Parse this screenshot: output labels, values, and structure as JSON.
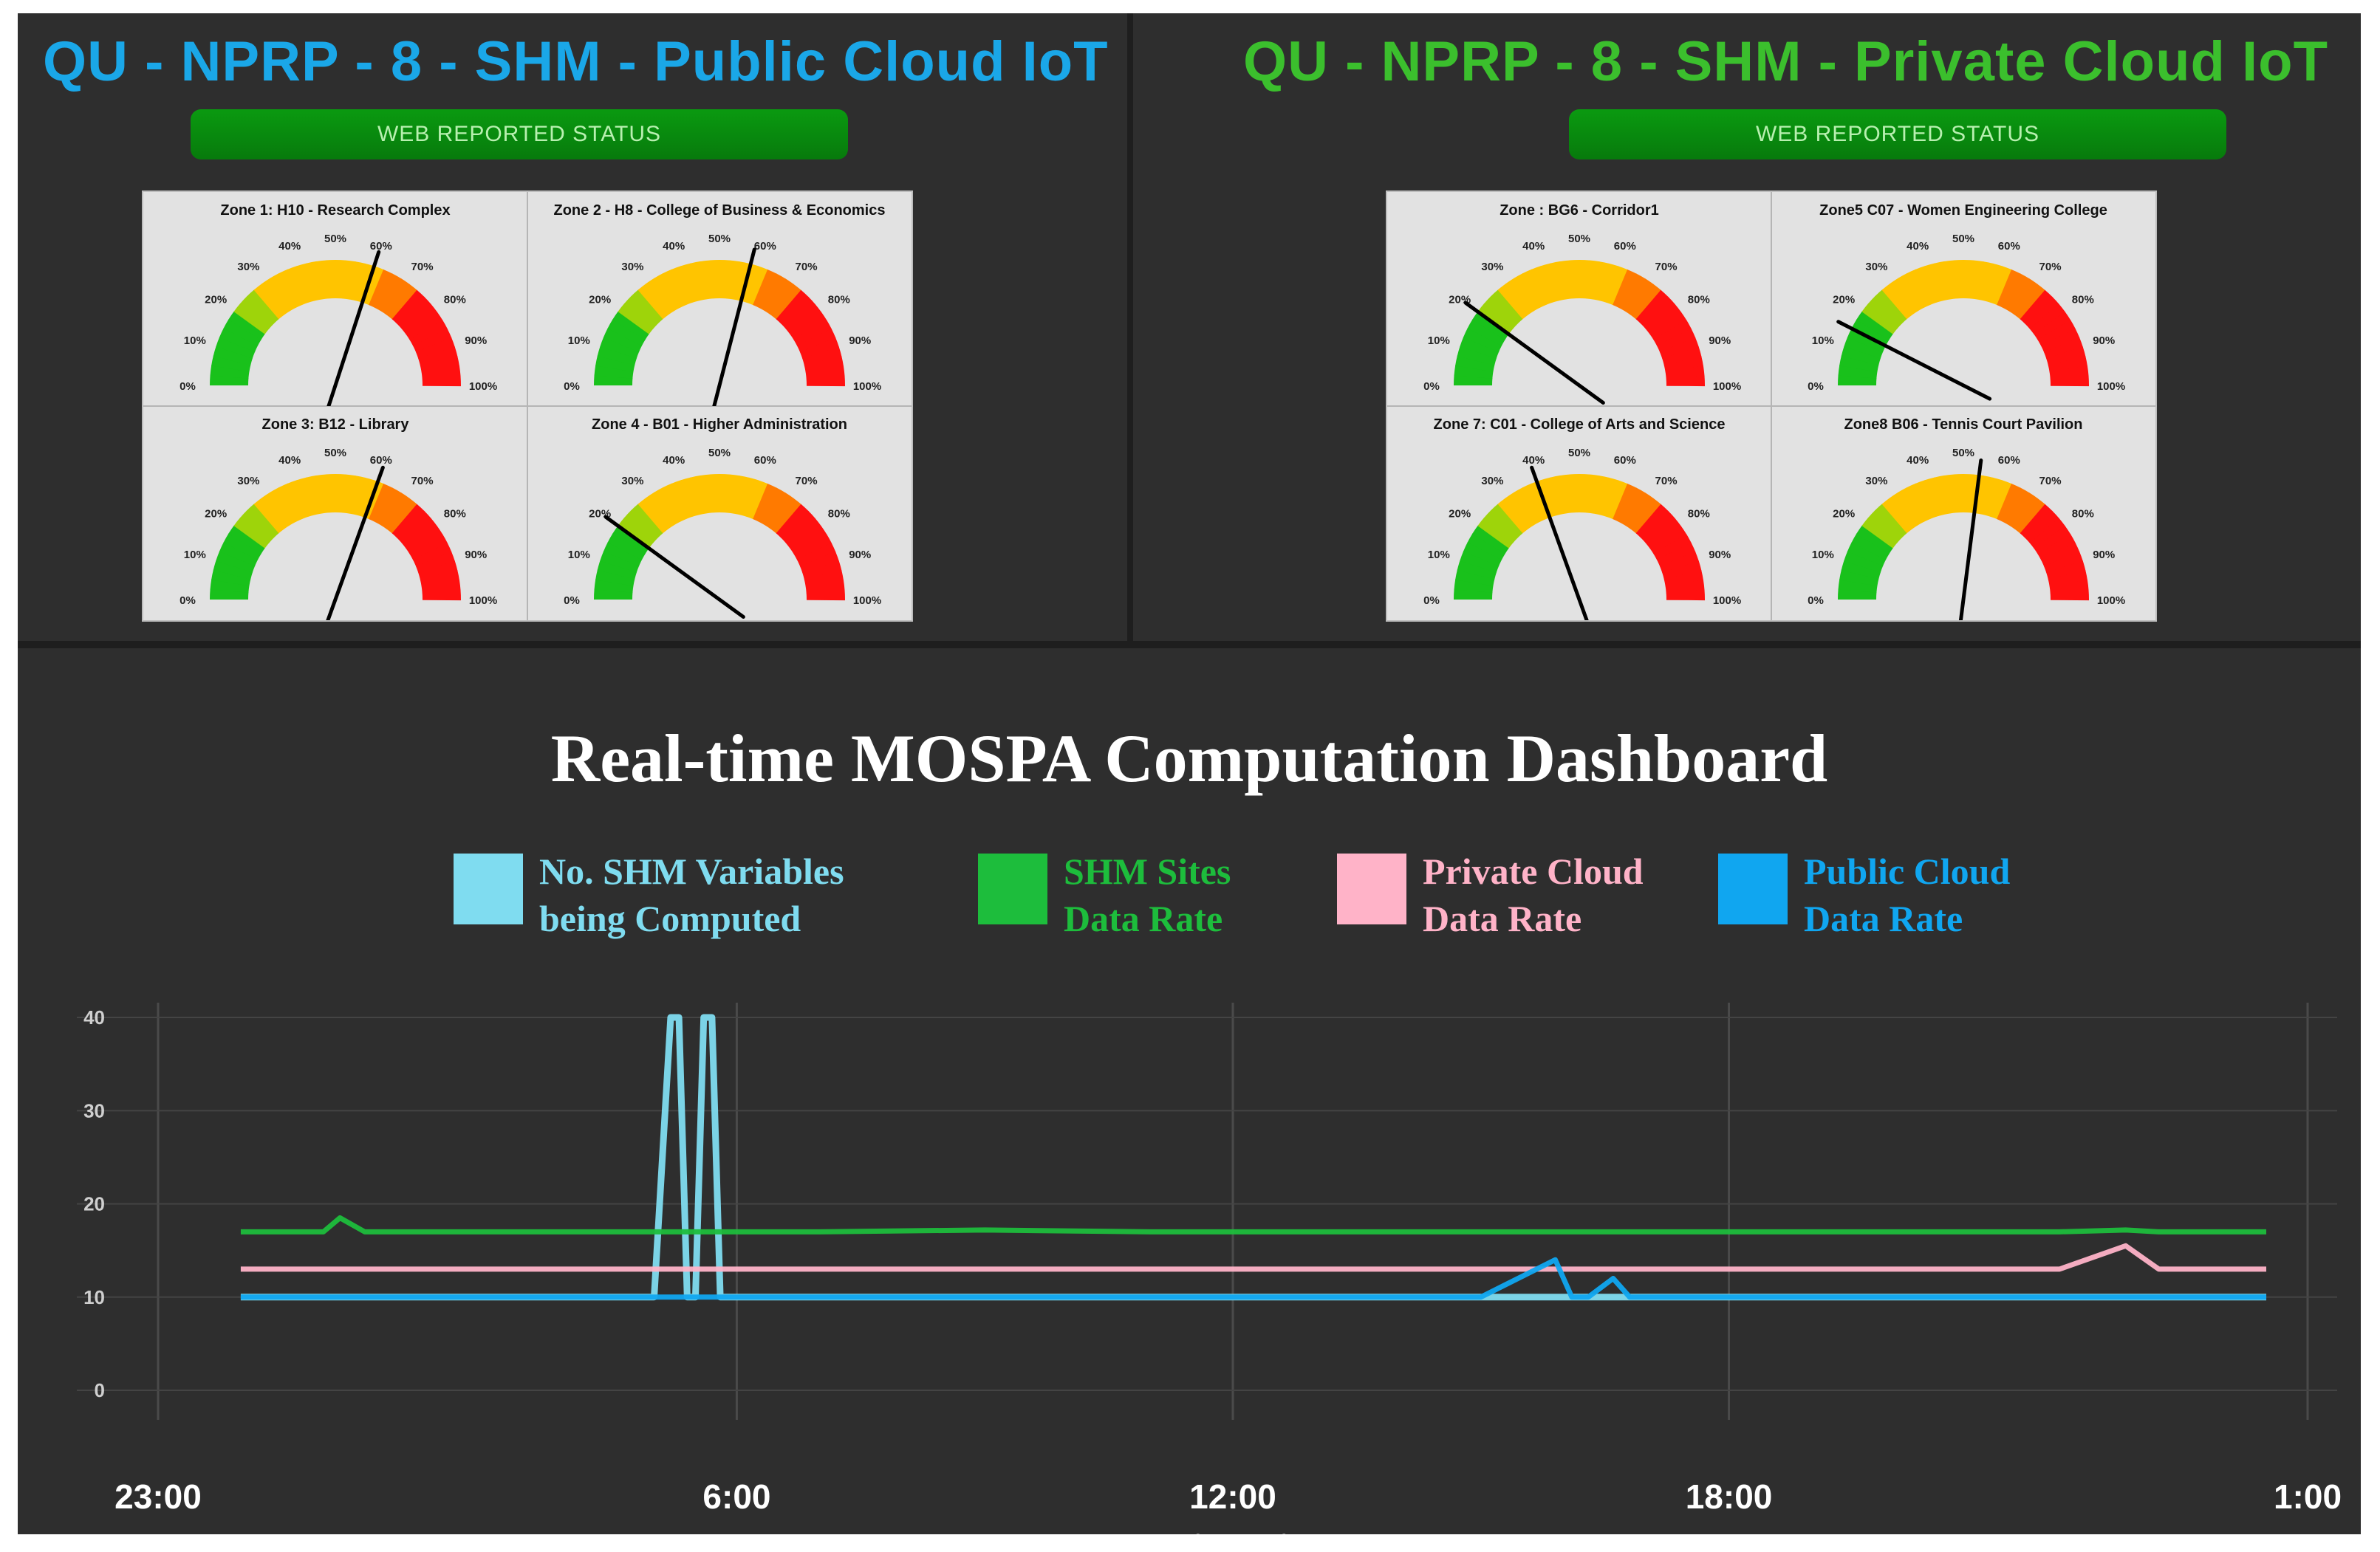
{
  "public_panel": {
    "title": "QU - NPRP - 8 - SHM - Public Cloud IoT",
    "status_button": "WEB REPORTED STATUS",
    "zones": [
      {
        "label": "Zone 1: H10 - Research Complex",
        "level_percent": 60
      },
      {
        "label": "Zone 2 - H8 - College of Business & Economics",
        "level_percent": 58
      },
      {
        "label": "Zone 3: B12 - Library",
        "level_percent": 61
      },
      {
        "label": "Zone 4 - B01 - Higher Administration",
        "level_percent": 20
      }
    ]
  },
  "private_panel": {
    "title": "QU - NPRP - 8 - SHM - Private Cloud IoT",
    "status_button": "WEB REPORTED STATUS",
    "zones": [
      {
        "label": "Zone : BG6 - Corridor1",
        "level_percent": 20
      },
      {
        "label": "Zone5 C07 - Women Engineering College",
        "level_percent": 15
      },
      {
        "label": "Zone 7: C01 - College of Arts and Science",
        "level_percent": 39
      },
      {
        "label": "Zone8 B06 - Tennis Court Pavilion",
        "level_percent": 54
      }
    ]
  },
  "gauge_scale": {
    "ticks": [
      "0%",
      "10%",
      "20%",
      "30%",
      "40%",
      "50%",
      "60%",
      "70%",
      "80%",
      "90%",
      "100%"
    ],
    "colors": {
      "green": "#19c11b",
      "yellow": "#ffc400",
      "red": "#ff1010"
    }
  },
  "chart_data": {
    "type": "line",
    "title": "Real-time MOSPA Computation Dashboard",
    "xlabel": "TIME (Hours)",
    "ylabel": "",
    "x_tick_labels": [
      "23:00",
      "6:00",
      "12:00",
      "18:00",
      "1:00"
    ],
    "x_tick_hours": [
      0,
      7,
      13,
      19,
      26
    ],
    "y_tick_labels": [
      "0",
      "10",
      "20",
      "30",
      "40"
    ],
    "ylim": [
      0,
      40
    ],
    "grid": true,
    "legend_placement": "top",
    "x_hours": [
      1,
      2,
      2.2,
      2.5,
      4,
      5,
      6,
      6.2,
      6.3,
      6.4,
      6.5,
      6.6,
      6.7,
      6.8,
      7,
      7.2,
      8,
      10,
      12,
      14,
      16,
      16.9,
      17.1,
      17.3,
      17.6,
      17.8,
      18,
      20,
      22,
      23,
      23.8,
      24.2,
      25,
      25.5
    ],
    "series": [
      {
        "name": "No. SHM Variables being Computed",
        "color": "#7fdcf0",
        "values": [
          10,
          10,
          10,
          10,
          10,
          10,
          10,
          40,
          40,
          10,
          10,
          40,
          40,
          10,
          10,
          10,
          10,
          10,
          10,
          10,
          10,
          10,
          10,
          10,
          10,
          10,
          10,
          10,
          10,
          10,
          10,
          10,
          10,
          10
        ]
      },
      {
        "name": "SHM Sites Data Rate",
        "color": "#1dbd3c",
        "values": [
          17,
          17,
          18.5,
          17,
          17,
          17,
          17,
          17,
          17,
          17,
          17,
          17,
          17,
          17,
          17,
          17,
          17,
          17.2,
          17,
          17,
          17,
          17,
          17,
          17,
          17,
          17,
          17,
          17,
          17,
          17,
          17.2,
          17,
          17,
          17
        ]
      },
      {
        "name": "Private Cloud Data Rate",
        "color": "#ffb3c8",
        "values": [
          13,
          13,
          13,
          13,
          13,
          13,
          13,
          13,
          13,
          13,
          13,
          13,
          13,
          13,
          13,
          13,
          13,
          13,
          13,
          13,
          13,
          13,
          13,
          13,
          13,
          13,
          13,
          13,
          13,
          13,
          15.5,
          13,
          13,
          13
        ]
      },
      {
        "name": "Public Cloud Data Rate",
        "color": "#10a6f0",
        "values": [
          10,
          10,
          10,
          10,
          10,
          10,
          10,
          10,
          10,
          10,
          10,
          10,
          10,
          10,
          10,
          10,
          10,
          10,
          10,
          10,
          10,
          14,
          10,
          10,
          12,
          10,
          10,
          10,
          10,
          10,
          10,
          10,
          10,
          10
        ]
      }
    ]
  }
}
